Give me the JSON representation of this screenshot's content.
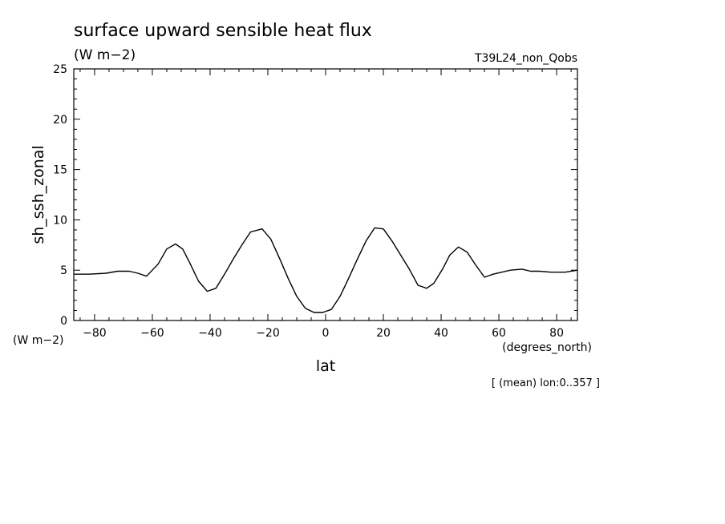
{
  "chart_data": {
    "type": "line",
    "title": "surface upward sensible heat flux",
    "units": "(W m−2)",
    "y_units": "(W m−2)",
    "experiment": "T39L24_non_Qobs",
    "xlabel": "lat",
    "x_units": "(degrees_north)",
    "ylabel": "sh_ssh_zonal",
    "footnote": "[ (mean) lon:0..357 ]",
    "xlim": [
      -87.2,
      87.2
    ],
    "ylim": [
      0,
      25
    ],
    "x_ticks": [
      -80,
      -60,
      -40,
      -20,
      0,
      20,
      40,
      60,
      80
    ],
    "y_ticks": [
      0,
      5,
      10,
      15,
      20,
      25
    ],
    "x_tick_labels": [
      "−80",
      "−60",
      "−40",
      "−20",
      "0",
      "20",
      "40",
      "60",
      "80"
    ],
    "y_tick_labels": [
      "0",
      "5",
      "10",
      "15",
      "20",
      "25"
    ],
    "grid": false,
    "legend": "none",
    "series": [
      {
        "color": "#000000",
        "x": [
          -87.2,
          -82,
          -76,
          -72,
          -68,
          -65,
          -62,
          -58,
          -55,
          -52,
          -49.5,
          -47,
          -44,
          -41,
          -38,
          -35,
          -32,
          -29,
          -26,
          -22,
          -19,
          -16,
          -13,
          -10,
          -7,
          -4,
          -1,
          2,
          5,
          8,
          11,
          14,
          17,
          20,
          23,
          26,
          29,
          32,
          35,
          37.5,
          40.5,
          43,
          46,
          49,
          52,
          55,
          58,
          61,
          64,
          68,
          71,
          74,
          78,
          83,
          87.2
        ],
        "y": [
          4.6,
          4.6,
          4.7,
          4.9,
          4.9,
          4.7,
          4.4,
          5.6,
          7.1,
          7.6,
          7.1,
          5.7,
          3.9,
          2.9,
          3.2,
          4.6,
          6.1,
          7.5,
          8.8,
          9.1,
          8.1,
          6.2,
          4.2,
          2.4,
          1.2,
          0.8,
          0.8,
          1.1,
          2.4,
          4.2,
          6.1,
          7.9,
          9.2,
          9.1,
          7.9,
          6.5,
          5.1,
          3.5,
          3.2,
          3.7,
          5.1,
          6.5,
          7.3,
          6.8,
          5.5,
          4.3,
          4.6,
          4.8,
          5.0,
          5.1,
          4.9,
          4.9,
          4.8,
          4.8,
          5.0
        ]
      }
    ]
  }
}
